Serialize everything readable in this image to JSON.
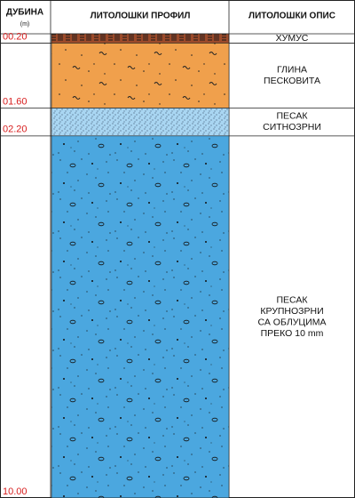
{
  "header": {
    "depth": "ДУБИНА",
    "unit": "(m)",
    "profile": "ЛИТОЛОШКИ ПРОФИЛ",
    "description": "ЛИТОЛОШКИ ОПИС"
  },
  "layers": [
    {
      "depth": "00.20",
      "description": [
        "ХУМУС"
      ]
    },
    {
      "depth": "01.60",
      "description": [
        "ГЛИНА",
        "ПЕСКОВИТА"
      ]
    },
    {
      "depth": "02.20",
      "description": [
        "ПЕСАК",
        "СИТНОЗРНИ"
      ]
    },
    {
      "depth": "10.00",
      "description": [
        "ПЕСАК",
        "КРУПНОЗРНИ",
        "СА ОБЛУЦИМА",
        "ПРЕКО 10 mm"
      ]
    }
  ]
}
